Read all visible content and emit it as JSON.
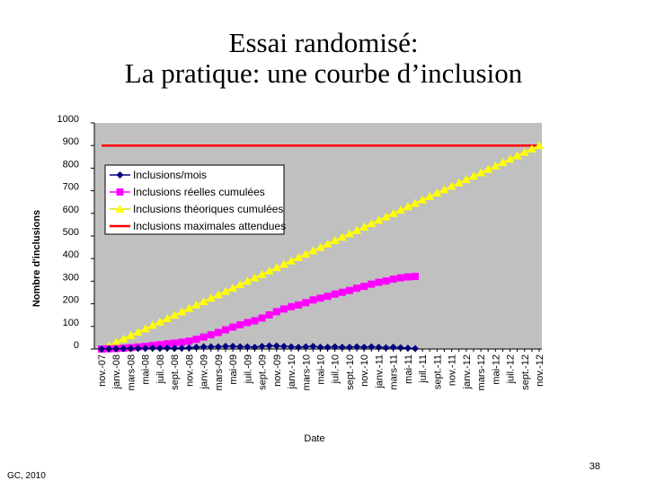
{
  "slide": {
    "title_line1": "Essai randomisé:",
    "title_line2": "La pratique: une courbe d’inclusion",
    "footer_left": "GC, 2010",
    "page_number": "38"
  },
  "chart_data": {
    "type": "line",
    "x_label": "Date",
    "y_label": "Nombre d'inclusions",
    "categories": [
      "nov.-07",
      null,
      "janv.-08",
      null,
      "mars-08",
      null,
      "mai-08",
      null,
      "juil.-08",
      null,
      "sept.-08",
      null,
      "nov.-08",
      null,
      "janv.-09",
      null,
      "mars-09",
      null,
      "mai-09",
      null,
      "juil.-09",
      null,
      "sept.-09",
      null,
      "nov.-09",
      null,
      "janv.-10",
      null,
      "mars-10",
      null,
      "mai-10",
      null,
      "juil.-10",
      null,
      "sept.-10",
      null,
      "nov.-10",
      null,
      "janv.-11",
      null,
      "mars-11",
      null,
      "mai-11",
      null,
      "juil.-11",
      null,
      "sept.-11",
      null,
      "nov.-11",
      null,
      "janv.-12",
      null,
      "mars-12",
      null,
      "mai-12",
      null,
      "juil.-12",
      null,
      "sept.-12",
      null,
      "nov.-12"
    ],
    "series": [
      {
        "name": "Inclusions/mois",
        "color": "#000080",
        "marker": "diamond",
        "values": [
          0,
          1,
          1,
          2,
          2,
          3,
          3,
          4,
          3,
          4,
          3,
          4,
          5,
          8,
          10,
          10,
          10,
          12,
          12,
          10,
          10,
          8,
          12,
          14,
          14,
          12,
          10,
          8,
          10,
          12,
          8,
          8,
          10,
          8,
          8,
          10,
          8,
          10,
          8,
          6,
          8,
          6,
          4,
          2,
          null,
          null,
          null,
          null,
          null,
          null,
          null,
          null,
          null,
          null,
          null,
          null,
          null,
          null,
          null,
          null,
          null
        ]
      },
      {
        "name": "Inclusions réelles cumulées",
        "color": "#ff00ff",
        "marker": "square",
        "values": [
          0,
          1,
          2,
          4,
          6,
          9,
          12,
          16,
          19,
          23,
          26,
          30,
          35,
          43,
          53,
          63,
          73,
          85,
          97,
          107,
          117,
          125,
          137,
          151,
          165,
          177,
          187,
          195,
          205,
          217,
          225,
          233,
          243,
          251,
          259,
          269,
          277,
          287,
          295,
          301,
          309,
          315,
          319,
          321,
          null,
          null,
          null,
          null,
          null,
          null,
          null,
          null,
          null,
          null,
          null,
          null,
          null,
          null,
          null,
          null,
          null
        ]
      },
      {
        "name": "Inclusions théoriques cumulées",
        "color": "#ffff00",
        "marker": "triangle",
        "values": [
          0,
          15,
          30,
          45,
          60,
          75,
          90,
          105,
          120,
          135,
          150,
          165,
          180,
          195,
          210,
          225,
          240,
          255,
          270,
          285,
          300,
          315,
          330,
          345,
          360,
          375,
          390,
          405,
          420,
          435,
          450,
          465,
          480,
          495,
          510,
          525,
          540,
          555,
          570,
          585,
          600,
          615,
          630,
          645,
          660,
          675,
          690,
          705,
          720,
          735,
          750,
          765,
          780,
          795,
          810,
          825,
          840,
          855,
          870,
          885,
          900
        ]
      },
      {
        "name": "Inclusions maximales attendues",
        "color": "#ff0000",
        "marker": "none",
        "values": [
          900,
          900,
          900,
          900,
          900,
          900,
          900,
          900,
          900,
          900,
          900,
          900,
          900,
          900,
          900,
          900,
          900,
          900,
          900,
          900,
          900,
          900,
          900,
          900,
          900,
          900,
          900,
          900,
          900,
          900,
          900,
          900,
          900,
          900,
          900,
          900,
          900,
          900,
          900,
          900,
          900,
          900,
          900,
          900,
          900,
          900,
          900,
          900,
          900,
          900,
          900,
          900,
          900,
          900,
          900,
          900,
          900,
          900,
          900,
          900,
          900
        ]
      }
    ],
    "ylim": [
      0,
      1000
    ],
    "yticks": [
      0,
      100,
      200,
      300,
      400,
      500,
      600,
      700,
      800,
      900,
      1000
    ],
    "grid": false,
    "legend": "upper-left"
  }
}
